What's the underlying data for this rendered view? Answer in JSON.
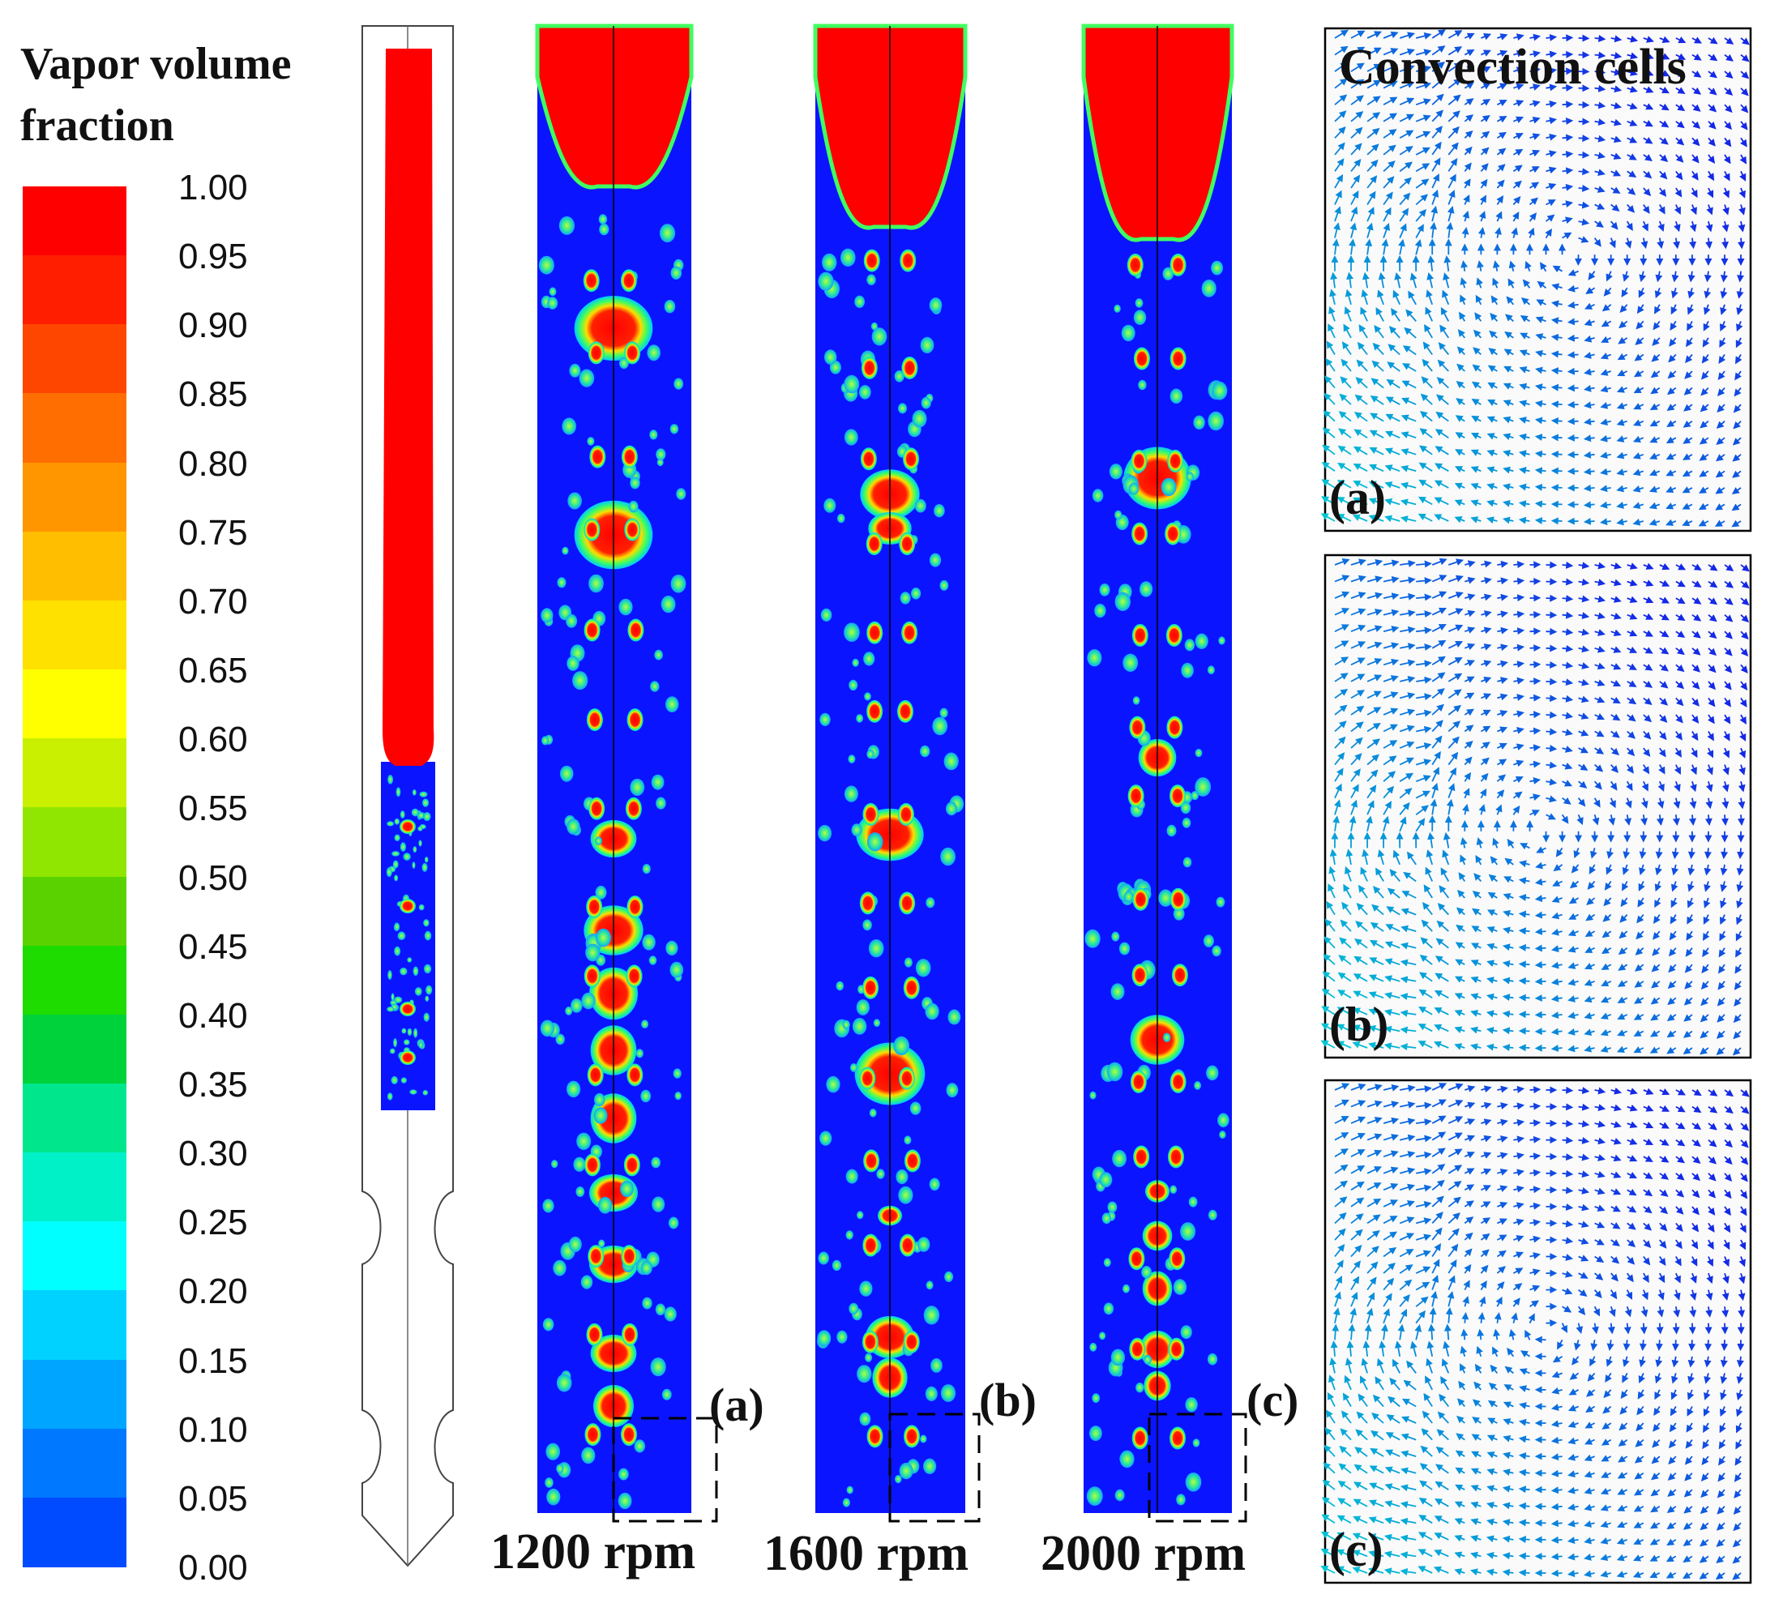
{
  "legend": {
    "title_line1": "Vapor volume",
    "title_line2": "fraction",
    "ticks": [
      "1.00",
      "0.95",
      "0.90",
      "0.85",
      "0.80",
      "0.75",
      "0.70",
      "0.65",
      "0.60",
      "0.55",
      "0.50",
      "0.45",
      "0.40",
      "0.35",
      "0.30",
      "0.25",
      "0.20",
      "0.15",
      "0.10",
      "0.05",
      "0.00"
    ],
    "colors": [
      "#ff0000",
      "#ff1e00",
      "#ff4600",
      "#ff6e00",
      "#ff9600",
      "#ffbe00",
      "#ffe100",
      "#ffff00",
      "#c8f000",
      "#90e600",
      "#5ad200",
      "#1edc00",
      "#00d23c",
      "#00e68c",
      "#00f0c8",
      "#00ffff",
      "#00d2ff",
      "#00a5ff",
      "#0078ff",
      "#004bff",
      "#0014ff"
    ]
  },
  "columns": [
    {
      "label": "1200 rpm",
      "inset_label": "(a)"
    },
    {
      "label": "1600 rpm",
      "inset_label": "(b)"
    },
    {
      "label": "2000 rpm",
      "inset_label": "(c)"
    }
  ],
  "convection": {
    "title": "Convection cells",
    "panels": [
      {
        "label": "(a)"
      },
      {
        "label": "(b)"
      },
      {
        "label": "(c)"
      }
    ]
  }
}
